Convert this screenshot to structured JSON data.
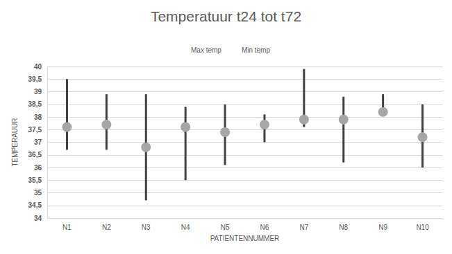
{
  "chart_data": {
    "type": "high-low",
    "title": "Temperatuur t24 tot t72",
    "x_label": "PATIËNTENNUMMER",
    "y_label": "TEMPERAUUR",
    "categories": [
      "N1",
      "N2",
      "N3",
      "N4",
      "N5",
      "N6",
      "N7",
      "N8",
      "N9",
      "N10"
    ],
    "series": [
      {
        "name": "Max temp",
        "color": "#404040",
        "values": [
          39.5,
          38.9,
          38.9,
          38.4,
          38.5,
          38.1,
          39.9,
          38.8,
          38.9,
          38.5
        ]
      },
      {
        "name": "Min temp",
        "color": "#404040",
        "values": [
          36.7,
          36.7,
          34.7,
          35.5,
          36.1,
          37.0,
          37.6,
          36.2,
          38.1,
          36.0
        ]
      }
    ],
    "values": [
      37.6,
      37.7,
      36.8,
      37.6,
      37.4,
      37.7,
      37.9,
      37.9,
      38.2,
      37.2
    ],
    "color": "#a6a6a6",
    "marker": "circle",
    "ylim": [
      34,
      40
    ],
    "yticks": [
      34,
      {
        "value": 34.5,
        "label": "34,5"
      },
      35,
      {
        "value": 35.5,
        "label": "35,5"
      },
      36,
      {
        "value": 36.5,
        "label": "36,5"
      },
      37,
      {
        "value": 37.5,
        "label": "37,5"
      },
      38,
      {
        "value": 38.5,
        "label": "38,5"
      },
      39,
      {
        "value": 39.5,
        "label": "39,5"
      },
      40
    ],
    "grid": true,
    "legend": "top"
  }
}
